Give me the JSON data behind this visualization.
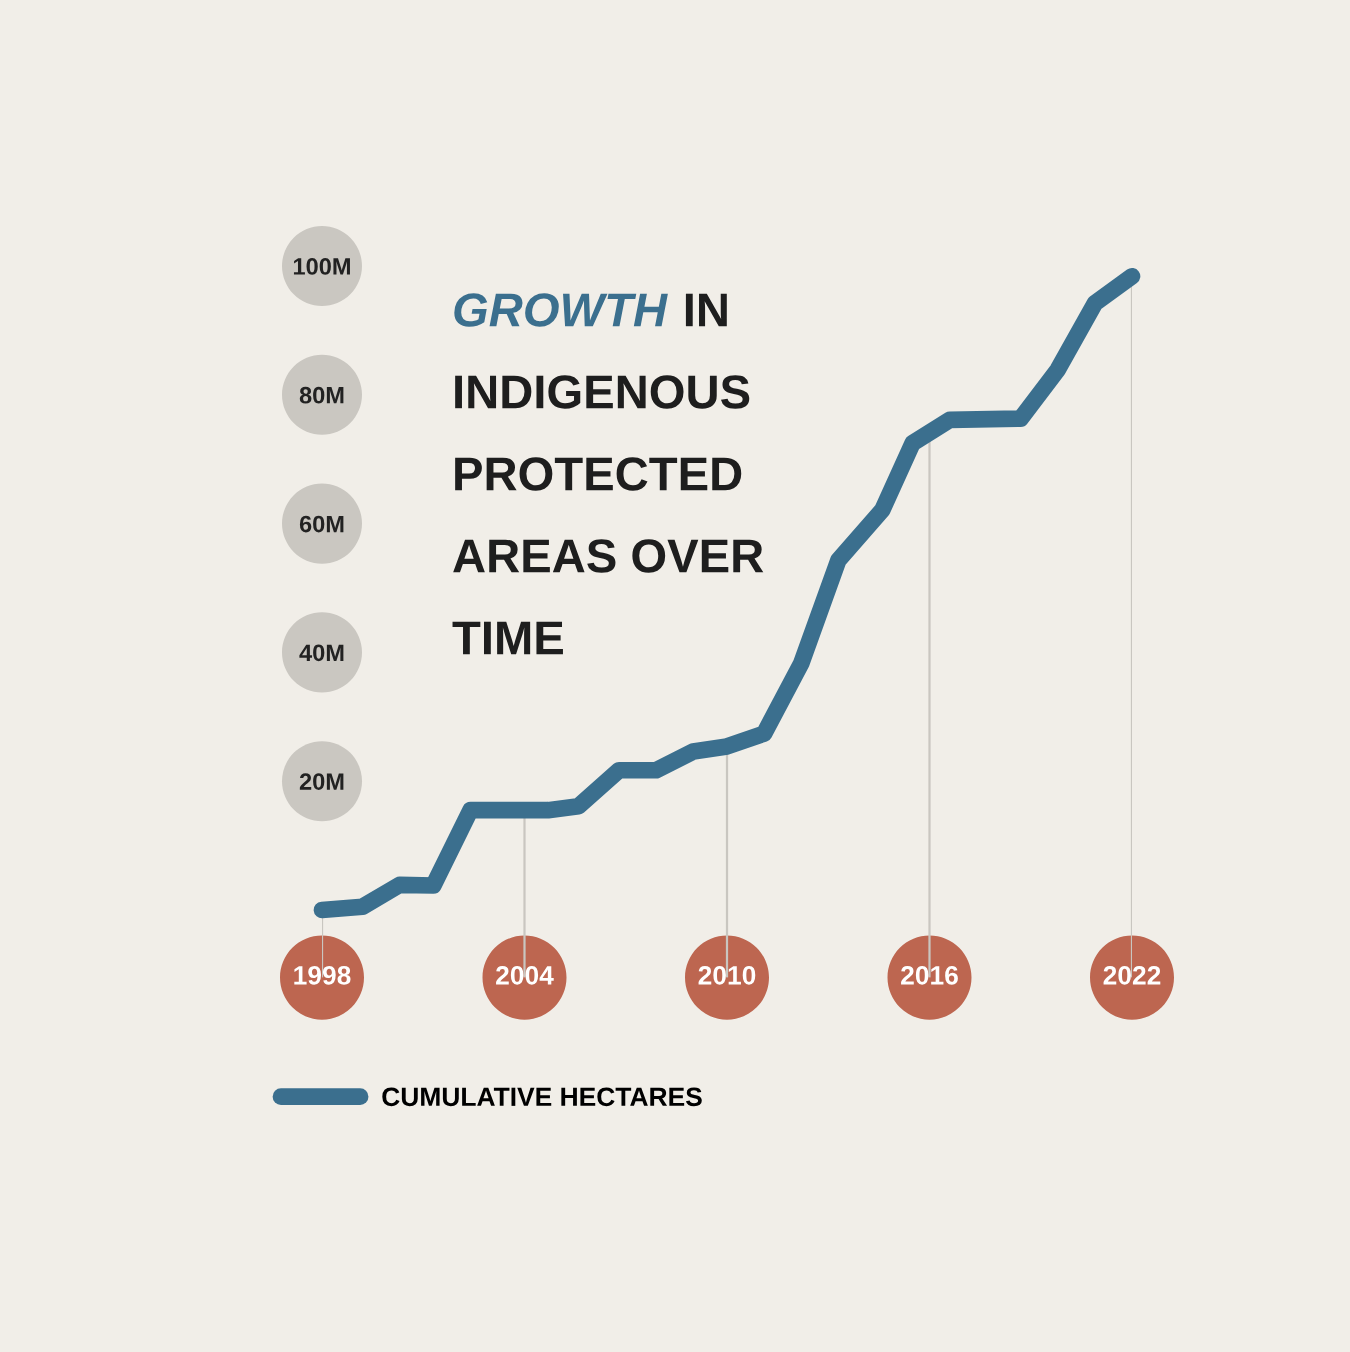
{
  "chart_data": {
    "type": "line",
    "title": "GROWTH IN INDIGENOUS PROTECTED AREAS OVER TIME",
    "series": [
      {
        "name": "CUMULATIVE HECTARES",
        "color": "#3b6f8e",
        "x": [
          1998,
          1999.2,
          2000.3,
          2001.3,
          2002.4,
          2004.7,
          2005.6,
          2006.8,
          2007.9,
          2009.0,
          2010.0,
          2011.1,
          2012.2,
          2013.3,
          2014.6,
          2015.5,
          2016.6,
          2018.7,
          2019.8,
          2020.9,
          2022
        ],
        "values": [
          0,
          0.5,
          3.9,
          3.8,
          15.5,
          15.5,
          16.1,
          21.7,
          21.7,
          24.6,
          25.4,
          27.4,
          38.3,
          54.3,
          62.1,
          72.5,
          76.1,
          76.3,
          83.9,
          94.2,
          98.4
        ]
      }
    ],
    "xlim": [
      1998,
      2022
    ],
    "ylim": [
      -10.5,
      100
    ],
    "xticks": [
      1998,
      2004,
      2010,
      2016,
      2022
    ],
    "yticks": [
      {
        "value": 20,
        "label": "20M"
      },
      {
        "value": 40,
        "label": "40M"
      },
      {
        "value": 60,
        "label": "60M"
      },
      {
        "value": 80,
        "label": "80M"
      },
      {
        "value": 100,
        "label": "100M"
      }
    ],
    "grid": "x",
    "legend": "bottom left",
    "line_style": "solid",
    "marker": "none"
  }
}
